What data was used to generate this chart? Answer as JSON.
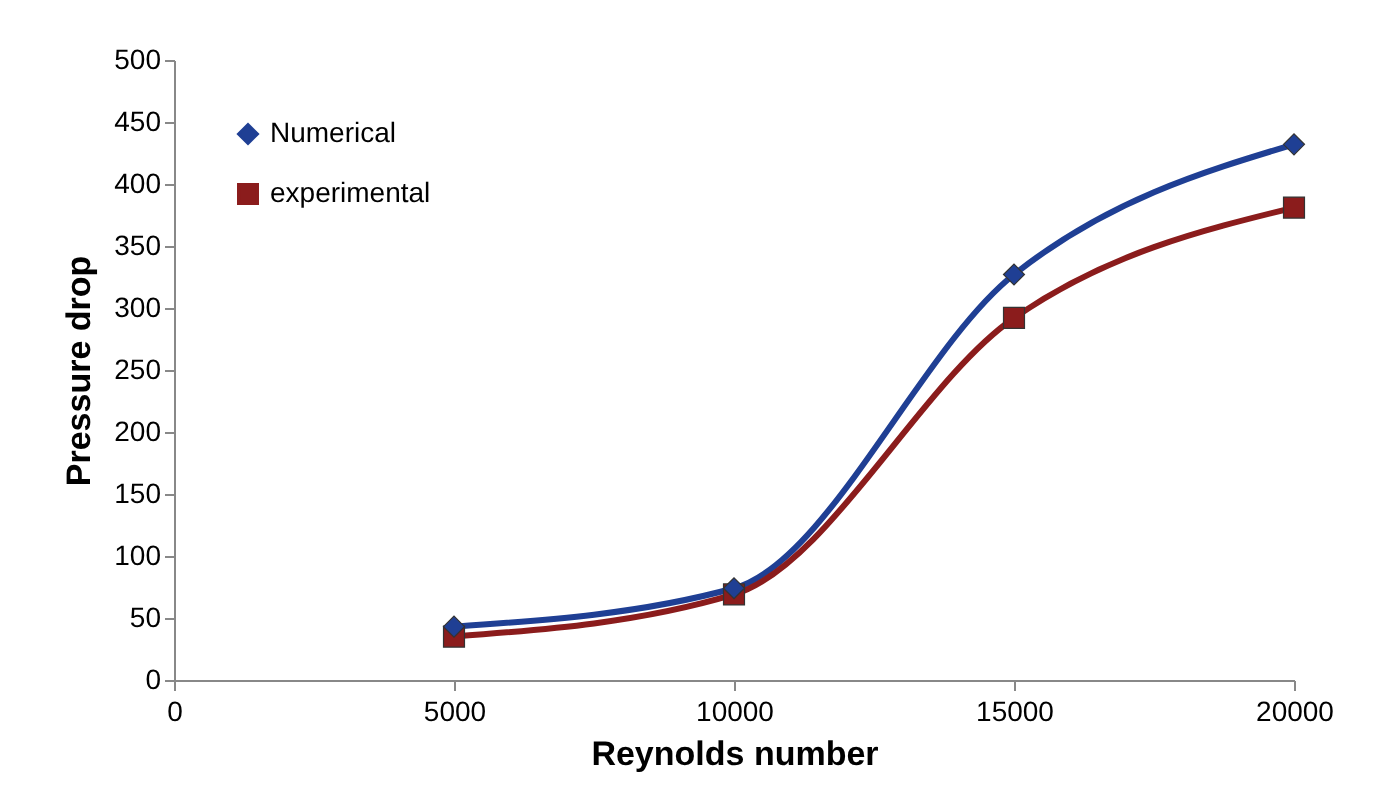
{
  "chart_data": {
    "type": "line",
    "xlabel": "Reynolds number",
    "ylabel": "Pressure drop",
    "x": [
      5000,
      10000,
      15000,
      20000
    ],
    "series": [
      {
        "name": "Numerical",
        "color": "#1f3f94",
        "marker": "diamond",
        "values": [
          43,
          74,
          327,
          432
        ]
      },
      {
        "name": "experimental",
        "color": "#8b1c1c",
        "marker": "square",
        "values": [
          35,
          69,
          292,
          381
        ]
      }
    ],
    "xlim": [
      0,
      20000
    ],
    "xticks": [
      0,
      5000,
      10000,
      15000,
      20000
    ],
    "ylim": [
      0,
      500
    ],
    "yticks": [
      0,
      50,
      100,
      150,
      200,
      250,
      300,
      350,
      400,
      450,
      500
    ],
    "grid": false,
    "legend": "top left",
    "line_style": "solid"
  }
}
